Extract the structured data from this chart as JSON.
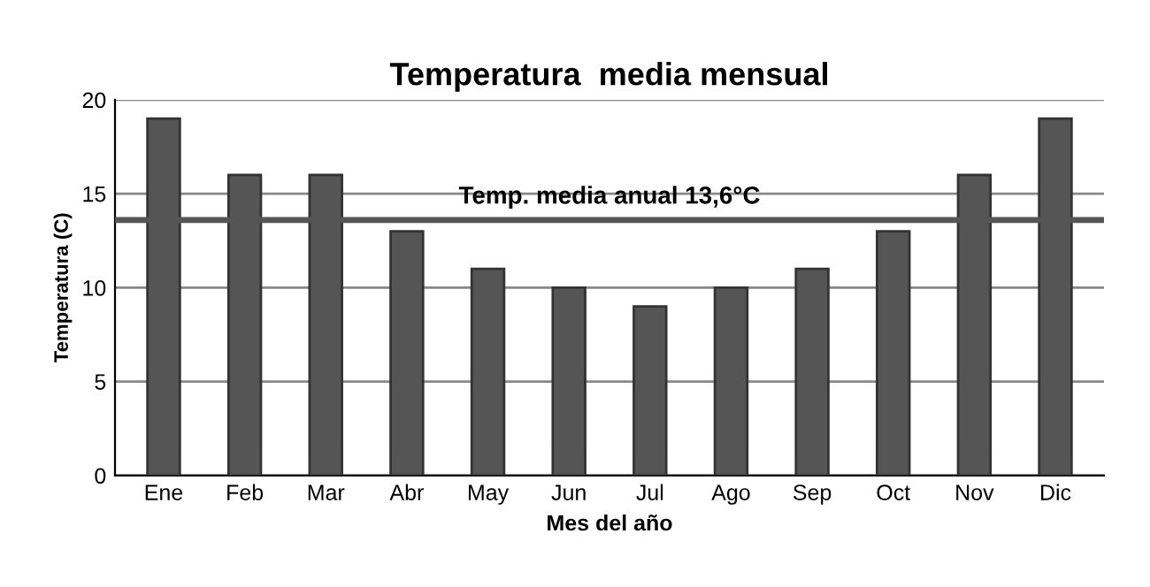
{
  "chart_data": {
    "type": "bar",
    "title": "Temperatura  media mensual",
    "xlabel": "Mes del año",
    "ylabel": "Temperatura (C)",
    "categories": [
      "Ene",
      "Feb",
      "Mar",
      "Abr",
      "May",
      "Jun",
      "Jul",
      "Ago",
      "Sep",
      "Oct",
      "Nov",
      "Dic"
    ],
    "values": [
      19,
      16,
      16,
      13,
      11,
      10,
      9,
      10,
      11,
      13,
      16,
      19
    ],
    "color": "#555555",
    "ylim": [
      0,
      20
    ],
    "yticks": [
      0,
      5,
      10,
      15,
      20
    ],
    "grid": "y",
    "ref_lines": [
      {
        "axis": "y",
        "value": 13.6,
        "label": "Temp. media anual 13,6°C",
        "color": "#555555"
      }
    ]
  }
}
